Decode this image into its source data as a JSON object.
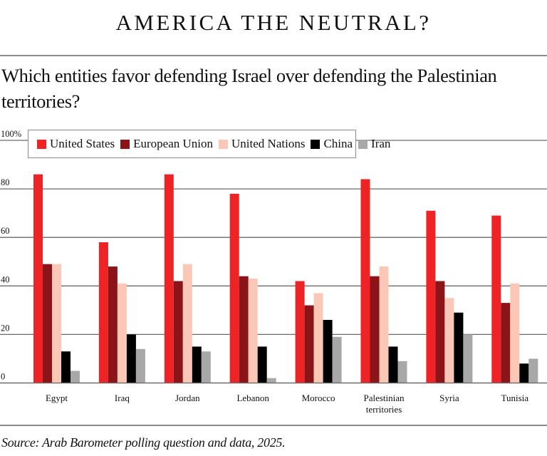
{
  "header": {
    "title": "AMERICA THE NEUTRAL?",
    "subtitle": "Which entities favor defending Israel over defending the Palestinian territories?"
  },
  "footer": {
    "source": "Source: Arab Barometer polling question and data, 2025."
  },
  "chart_data": {
    "type": "bar",
    "title": "Which entities favor defending Israel over defending the Palestinian territories?",
    "xlabel": "",
    "ylabel": "",
    "ylim": [
      0,
      100
    ],
    "yticks": [
      0,
      20,
      40,
      60,
      80,
      100
    ],
    "ytick_labels": [
      "0",
      "20",
      "40",
      "60",
      "80",
      "100%"
    ],
    "grid": true,
    "legend_position": "top-left",
    "categories": [
      "Egypt",
      "Iraq",
      "Jordan",
      "Lebanon",
      "Morocco",
      "Palestinian territories",
      "Syria",
      "Tunisia"
    ],
    "category_label_lines": [
      [
        "Egypt"
      ],
      [
        "Iraq"
      ],
      [
        "Jordan"
      ],
      [
        "Lebanon"
      ],
      [
        "Morocco"
      ],
      [
        "Palestinian",
        "territories"
      ],
      [
        "Syria"
      ],
      [
        "Tunisia"
      ]
    ],
    "series": [
      {
        "name": "United States",
        "color": "#ee2326",
        "values": [
          86,
          58,
          86,
          78,
          42,
          84,
          71,
          69
        ]
      },
      {
        "name": "European Union",
        "color": "#8b1419",
        "values": [
          49,
          48,
          42,
          44,
          32,
          44,
          42,
          33
        ]
      },
      {
        "name": "United Nations",
        "color": "#fbc7b7",
        "values": [
          49,
          41,
          49,
          43,
          37,
          48,
          35,
          41
        ]
      },
      {
        "name": "China",
        "color": "#000000",
        "values": [
          13,
          20,
          15,
          15,
          26,
          15,
          29,
          8
        ]
      },
      {
        "name": "Iran",
        "color": "#a8a8a8",
        "values": [
          5,
          14,
          13,
          2,
          19,
          9,
          20,
          10
        ]
      }
    ]
  }
}
